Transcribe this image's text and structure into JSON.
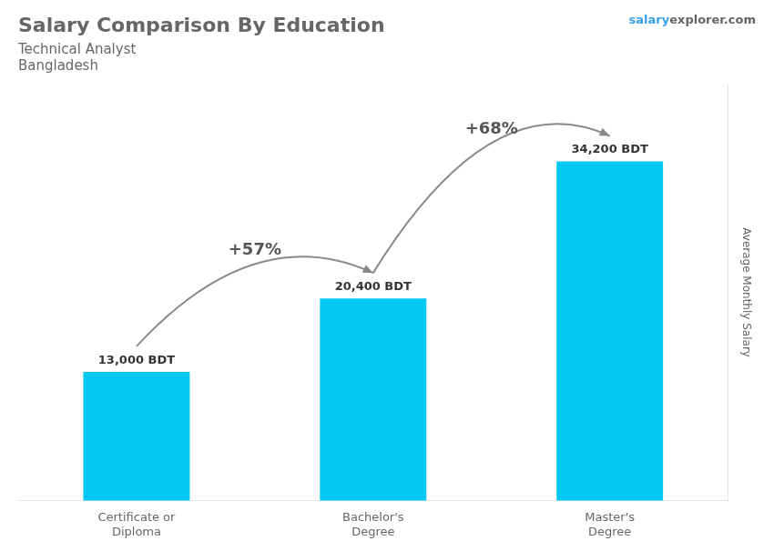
{
  "chart_data": {
    "type": "bar",
    "title": "Salary Comparison By Education",
    "subtitle": "Technical Analyst",
    "country": "Bangladesh",
    "watermark": [
      "salary",
      "explorer.com"
    ],
    "ylabel": "Average Monthly Salary",
    "categories": [
      "Certificate or\nDiploma",
      "Bachelor's\nDegree",
      "Master's\nDegree"
    ],
    "values": [
      13000,
      20400,
      34200
    ],
    "value_labels": [
      "13,000 BDT",
      "20,400 BDT",
      "34,200 BDT"
    ],
    "data_labels": true,
    "annotations": [
      "+57%",
      "+68%"
    ],
    "color": "#00c8f0",
    "ylim": [
      0,
      42000
    ],
    "tick_labels": "x",
    "grid": false
  }
}
